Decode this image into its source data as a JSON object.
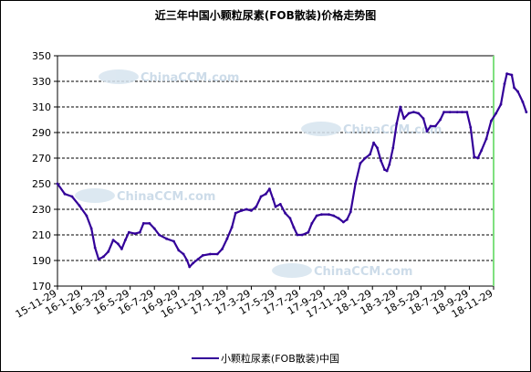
{
  "chart_data": {
    "type": "line",
    "title": "近三年中国小颗粒尿素(FOB散装)价格走势图",
    "xlabel": "",
    "ylabel": "",
    "ylim": [
      170,
      350
    ],
    "yticks": [
      350,
      330,
      310,
      290,
      270,
      250,
      230,
      210,
      190,
      170
    ],
    "xticks": [
      "15-11-29",
      "16-1-29",
      "16-3-29",
      "16-5-29",
      "16-7-29",
      "16-9-29",
      "16-11-29",
      "17-1-29",
      "17-3-29",
      "17-5-29",
      "17-7-29",
      "17-9-29",
      "17-11-29",
      "18-1-29",
      "18-3-29",
      "18-5-29",
      "18-7-29",
      "18-9-29",
      "18-11-29"
    ],
    "grid": true,
    "legend_position": "bottom",
    "series": [
      {
        "name": "小颗粒尿素(FOB散装)中国",
        "color": "#330099",
        "points": [
          [
            0,
            250
          ],
          [
            0.3,
            242
          ],
          [
            0.6,
            240
          ],
          [
            0.9,
            233
          ],
          [
            1.2,
            225
          ],
          [
            1.4,
            215
          ],
          [
            1.55,
            200
          ],
          [
            1.7,
            191
          ],
          [
            1.9,
            193
          ],
          [
            2.1,
            197
          ],
          [
            2.3,
            206
          ],
          [
            2.5,
            203
          ],
          [
            2.65,
            199
          ],
          [
            2.8,
            206
          ],
          [
            2.95,
            212
          ],
          [
            3.2,
            211
          ],
          [
            3.4,
            212
          ],
          [
            3.55,
            219
          ],
          [
            3.8,
            219
          ],
          [
            4.0,
            215
          ],
          [
            4.2,
            210
          ],
          [
            4.5,
            207
          ],
          [
            4.8,
            205
          ],
          [
            5.0,
            198
          ],
          [
            5.2,
            195
          ],
          [
            5.35,
            190
          ],
          [
            5.45,
            185
          ],
          [
            5.6,
            188
          ],
          [
            5.8,
            191
          ],
          [
            6.0,
            194
          ],
          [
            6.3,
            195
          ],
          [
            6.6,
            195
          ],
          [
            6.8,
            199
          ],
          [
            7.0,
            207
          ],
          [
            7.2,
            216
          ],
          [
            7.35,
            227
          ],
          [
            7.6,
            229
          ],
          [
            7.8,
            230
          ],
          [
            8.0,
            229
          ],
          [
            8.2,
            232
          ],
          [
            8.4,
            240
          ],
          [
            8.6,
            242
          ],
          [
            8.75,
            246
          ],
          [
            8.9,
            238
          ],
          [
            9.0,
            232
          ],
          [
            9.2,
            234
          ],
          [
            9.4,
            227
          ],
          [
            9.6,
            223
          ],
          [
            9.75,
            216
          ],
          [
            9.9,
            210
          ],
          [
            10.1,
            210
          ],
          [
            10.35,
            212
          ],
          [
            10.5,
            219
          ],
          [
            10.7,
            225
          ],
          [
            10.9,
            226
          ],
          [
            11.2,
            226
          ],
          [
            11.4,
            225
          ],
          [
            11.6,
            223
          ],
          [
            11.8,
            220
          ],
          [
            11.95,
            222
          ],
          [
            12.1,
            228
          ],
          [
            12.3,
            250
          ],
          [
            12.5,
            266
          ],
          [
            12.7,
            270
          ],
          [
            12.9,
            273
          ],
          [
            13.05,
            282
          ],
          [
            13.2,
            278
          ],
          [
            13.35,
            268
          ],
          [
            13.5,
            261
          ],
          [
            13.6,
            260
          ],
          [
            13.7,
            265
          ],
          [
            13.85,
            278
          ],
          [
            14.0,
            297
          ],
          [
            14.15,
            310
          ],
          [
            14.3,
            301
          ],
          [
            14.5,
            305
          ],
          [
            14.7,
            306
          ],
          [
            14.9,
            305
          ],
          [
            15.1,
            301
          ],
          [
            15.25,
            291
          ],
          [
            15.4,
            295
          ],
          [
            15.6,
            295
          ],
          [
            15.8,
            300
          ],
          [
            15.95,
            306
          ],
          [
            16.2,
            306
          ],
          [
            16.5,
            306
          ],
          [
            16.7,
            306
          ],
          [
            16.9,
            306
          ],
          [
            17.05,
            294
          ],
          [
            17.2,
            271
          ],
          [
            17.35,
            270
          ],
          [
            17.5,
            276
          ],
          [
            17.7,
            285
          ],
          [
            17.9,
            299
          ],
          [
            18.1,
            305
          ],
          [
            18.3,
            312
          ],
          [
            18.45,
            328
          ],
          [
            18.55,
            336
          ],
          [
            18.75,
            335
          ],
          [
            18.85,
            325
          ],
          [
            19.0,
            322
          ],
          [
            19.2,
            314
          ],
          [
            19.35,
            306
          ]
        ]
      }
    ]
  },
  "watermark": {
    "text": "ChinaCCM.com"
  }
}
